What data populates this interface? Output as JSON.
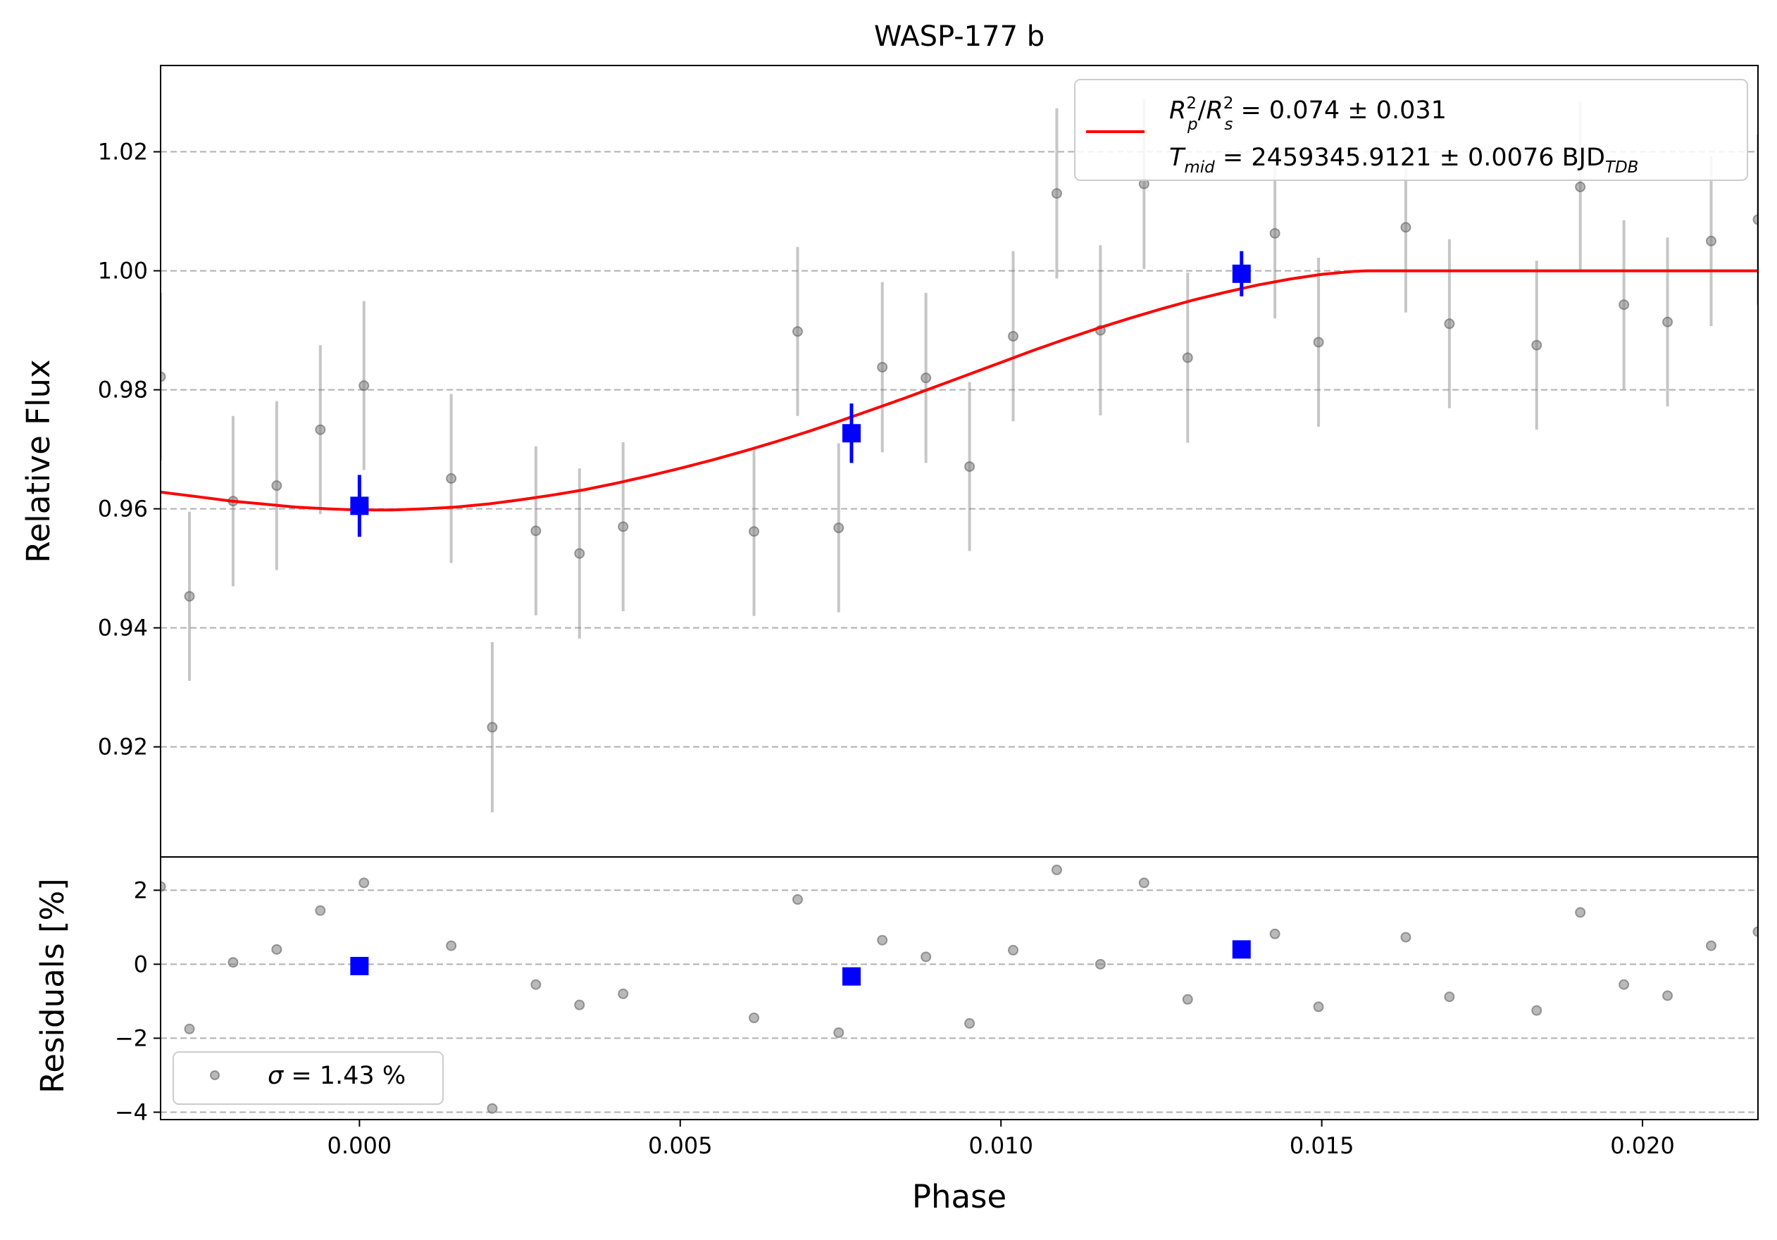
{
  "chart_data": [
    {
      "type": "scatter",
      "title": "WASP-177 b",
      "xlabel": "Phase",
      "ylabel": "Relative Flux",
      "xlim": [
        -0.0031,
        0.0218
      ],
      "ylim": [
        0.9015,
        1.0345
      ],
      "yticks": [
        0.92,
        0.94,
        0.96,
        0.98,
        1.0,
        1.02
      ],
      "ytick_labels": [
        "0.92",
        "0.94",
        "0.96",
        "0.98",
        "1.00",
        "1.02"
      ],
      "grid": "y-dashed",
      "legend_placement": "top-right",
      "legend": {
        "model_line1": {
          "a": "R",
          "a_sup": "2",
          "a_sub": "p",
          "slash": "/",
          "b": "R",
          "b_sup": "2",
          "b_sub": "s",
          "rest": " = 0.074 ± 0.031"
        },
        "model_line2": {
          "a": "T",
          "a_sub": "mid",
          "rest": " = 2459345.9121 ± 0.0076 BJD",
          "unit_sub": "TDB"
        }
      },
      "series": [
        {
          "kind": "data",
          "color": "#808080",
          "points": [
            {
              "x": -0.0031,
              "y": 0.9822,
              "err": 0.0141
            },
            {
              "x": -0.00265,
              "y": 0.9453,
              "err": 0.0142
            },
            {
              "x": -0.00197,
              "y": 0.9613,
              "err": 0.0143
            },
            {
              "x": -0.00129,
              "y": 0.9639,
              "err": 0.0142
            },
            {
              "x": -0.00061,
              "y": 0.9733,
              "err": 0.0142
            },
            {
              "x": 7e-05,
              "y": 0.9807,
              "err": 0.0142
            },
            {
              "x": 0.00143,
              "y": 0.9651,
              "err": 0.0142
            },
            {
              "x": 0.00207,
              "y": 0.9233,
              "err": 0.0143
            },
            {
              "x": 0.00275,
              "y": 0.9563,
              "err": 0.0142
            },
            {
              "x": 0.00343,
              "y": 0.9525,
              "err": 0.0143
            },
            {
              "x": 0.00411,
              "y": 0.957,
              "err": 0.0142
            },
            {
              "x": 0.00615,
              "y": 0.9562,
              "err": 0.0142
            },
            {
              "x": 0.00683,
              "y": 0.9898,
              "err": 0.0142
            },
            {
              "x": 0.00747,
              "y": 0.9568,
              "err": 0.0142
            },
            {
              "x": 0.00815,
              "y": 0.9838,
              "err": 0.0143
            },
            {
              "x": 0.00883,
              "y": 0.982,
              "err": 0.0143
            },
            {
              "x": 0.00951,
              "y": 0.9671,
              "err": 0.0142
            },
            {
              "x": 0.01019,
              "y": 0.989,
              "err": 0.0143
            },
            {
              "x": 0.01087,
              "y": 1.013,
              "err": 0.0143
            },
            {
              "x": 0.01155,
              "y": 0.99,
              "err": 0.0143
            },
            {
              "x": 0.01223,
              "y": 1.0146,
              "err": 0.0143
            },
            {
              "x": 0.01291,
              "y": 0.9854,
              "err": 0.0143
            },
            {
              "x": 0.01427,
              "y": 1.0063,
              "err": 0.0143
            },
            {
              "x": 0.01495,
              "y": 0.988,
              "err": 0.0142
            },
            {
              "x": 0.01631,
              "y": 1.0073,
              "err": 0.0143
            },
            {
              "x": 0.01699,
              "y": 0.9911,
              "err": 0.0142
            },
            {
              "x": 0.01835,
              "y": 0.9875,
              "err": 0.0142
            },
            {
              "x": 0.01903,
              "y": 1.0141,
              "err": 0.0143
            },
            {
              "x": 0.01971,
              "y": 0.9943,
              "err": 0.0142
            },
            {
              "x": 0.02039,
              "y": 0.9914,
              "err": 0.0142
            },
            {
              "x": 0.02107,
              "y": 1.005,
              "err": 0.0143
            },
            {
              "x": 0.0218,
              "y": 1.0086,
              "err": 0.0143
            }
          ]
        },
        {
          "kind": "binned",
          "color": "#0000ff",
          "points": [
            {
              "x": 0.0,
              "y": 0.9605,
              "err": 0.0052
            },
            {
              "x": 0.00767,
              "y": 0.9727,
              "err": 0.005
            },
            {
              "x": 0.01375,
              "y": 0.9995,
              "err": 0.0038
            }
          ]
        },
        {
          "kind": "model",
          "color": "#ff0000",
          "x": [
            -0.0031,
            -0.0025,
            -0.002,
            -0.0015,
            -0.001,
            -0.0005,
            0.0,
            0.0005,
            0.001,
            0.0015,
            0.002,
            0.0025,
            0.003,
            0.0035,
            0.004,
            0.0045,
            0.005,
            0.0055,
            0.006,
            0.0065,
            0.007,
            0.0075,
            0.008,
            0.0085,
            0.009,
            0.0095,
            0.01,
            0.0105,
            0.011,
            0.0115,
            0.012,
            0.0125,
            0.013,
            0.0135,
            0.014,
            0.0145,
            0.015,
            0.0155,
            0.0157,
            0.016,
            0.017,
            0.018,
            0.019,
            0.02,
            0.021,
            0.0218
          ],
          "y": [
            0.9628,
            0.962,
            0.9613,
            0.9608,
            0.9603,
            0.96,
            0.9598,
            0.9598,
            0.96,
            0.9603,
            0.9608,
            0.9615,
            0.9623,
            0.9632,
            0.9643,
            0.9655,
            0.9668,
            0.9682,
            0.9697,
            0.9713,
            0.973,
            0.9748,
            0.9767,
            0.9786,
            0.9806,
            0.9826,
            0.9846,
            0.9866,
            0.9885,
            0.9903,
            0.992,
            0.9936,
            0.9951,
            0.9964,
            0.9976,
            0.9986,
            0.9994,
            0.9999,
            1.0,
            1.0,
            1.0,
            1.0,
            1.0,
            1.0,
            1.0,
            1.0
          ]
        }
      ]
    },
    {
      "type": "scatter",
      "xlabel": "Phase",
      "ylabel": "Residuals [%]",
      "xlim": [
        -0.0031,
        0.0218
      ],
      "ylim": [
        -4.2,
        2.9
      ],
      "yticks": [
        -4,
        -2,
        0,
        2
      ],
      "ytick_labels": [
        "−4",
        "−2",
        "0",
        "2"
      ],
      "xticks": [
        0.0,
        0.005,
        0.01,
        0.015,
        0.02
      ],
      "xtick_labels": [
        "0.000",
        "0.005",
        "0.010",
        "0.015",
        "0.020"
      ],
      "grid": "y-dashed",
      "legend_placement": "lower-left",
      "legend": {
        "sigma_symbol": "σ",
        "sigma_rest": " = 1.43 %"
      },
      "series": [
        {
          "kind": "data",
          "color": "#808080",
          "points": [
            {
              "x": -0.0031,
              "y": 2.1
            },
            {
              "x": -0.00265,
              "y": -1.75
            },
            {
              "x": -0.00197,
              "y": 0.05
            },
            {
              "x": -0.00129,
              "y": 0.4
            },
            {
              "x": -0.00061,
              "y": 1.45
            },
            {
              "x": 7e-05,
              "y": 2.2
            },
            {
              "x": 0.00143,
              "y": 0.5
            },
            {
              "x": 0.00207,
              "y": -3.9
            },
            {
              "x": 0.00275,
              "y": -0.55
            },
            {
              "x": 0.00343,
              "y": -1.1
            },
            {
              "x": 0.00411,
              "y": -0.8
            },
            {
              "x": 0.00615,
              "y": -1.45
            },
            {
              "x": 0.00683,
              "y": 1.75
            },
            {
              "x": 0.00747,
              "y": -1.85
            },
            {
              "x": 0.00815,
              "y": 0.65
            },
            {
              "x": 0.00883,
              "y": 0.2
            },
            {
              "x": 0.00951,
              "y": -1.6
            },
            {
              "x": 0.01019,
              "y": 0.38
            },
            {
              "x": 0.01087,
              "y": 2.55
            },
            {
              "x": 0.01155,
              "y": 0.0
            },
            {
              "x": 0.01223,
              "y": 2.2
            },
            {
              "x": 0.01291,
              "y": -0.95
            },
            {
              "x": 0.01427,
              "y": 0.82
            },
            {
              "x": 0.01495,
              "y": -1.15
            },
            {
              "x": 0.01631,
              "y": 0.73
            },
            {
              "x": 0.01699,
              "y": -0.88
            },
            {
              "x": 0.01835,
              "y": -1.25
            },
            {
              "x": 0.01903,
              "y": 1.4
            },
            {
              "x": 0.01971,
              "y": -0.55
            },
            {
              "x": 0.02039,
              "y": -0.85
            },
            {
              "x": 0.02107,
              "y": 0.5
            },
            {
              "x": 0.0218,
              "y": 0.88
            }
          ]
        },
        {
          "kind": "binned",
          "color": "#0000ff",
          "points": [
            {
              "x": 0.0,
              "y": -0.05
            },
            {
              "x": 0.00767,
              "y": -0.33
            },
            {
              "x": 0.01375,
              "y": 0.4
            }
          ]
        }
      ]
    }
  ]
}
